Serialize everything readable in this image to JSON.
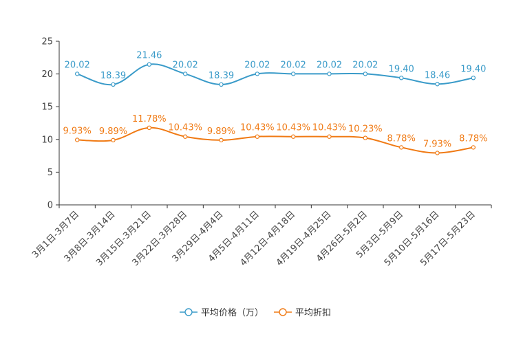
{
  "chart_data": {
    "type": "line",
    "categories": [
      "3月1日-3月7日",
      "3月8日-3月14日",
      "3月15日-3月21日",
      "3月22日-3月28日",
      "3月29日-4月4日",
      "4月5日-4月11日",
      "4月12日-4月18日",
      "4月19日-4月25日",
      "4月26日-5月2日",
      "5月3日-5月9日",
      "5月10日-5月16日",
      "5月17日-5月23日"
    ],
    "ylim": [
      0,
      25
    ],
    "yticks": [
      0,
      5,
      10,
      15,
      20,
      25
    ],
    "series": [
      {
        "name": "平均价格（万）",
        "color": "#3a9bc9",
        "values": [
          20.02,
          18.39,
          21.46,
          20.02,
          18.39,
          20.02,
          20.02,
          20.02,
          20.02,
          19.4,
          18.46,
          19.4
        ],
        "labels": [
          "20.02",
          "18.39",
          "21.46",
          "20.02",
          "18.39",
          "20.02",
          "20.02",
          "20.02",
          "20.02",
          "19.40",
          "18.46",
          "19.40"
        ]
      },
      {
        "name": "平均折扣",
        "color": "#f07a14",
        "values": [
          9.93,
          9.89,
          11.78,
          10.43,
          9.89,
          10.43,
          10.43,
          10.43,
          10.23,
          8.78,
          7.93,
          8.78
        ],
        "labels": [
          "9.93%",
          "9.89%",
          "11.78%",
          "10.43%",
          "9.89%",
          "10.43%",
          "10.43%",
          "10.43%",
          "10.23%",
          "8.78%",
          "7.93%",
          "8.78%"
        ]
      }
    ],
    "legend_position": "bottom-center",
    "grid": false
  }
}
